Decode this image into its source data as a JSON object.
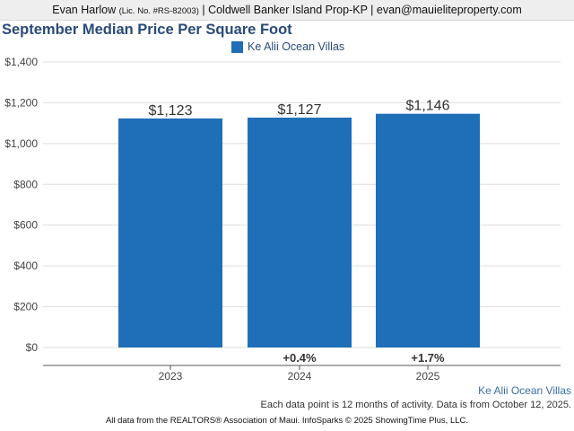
{
  "header": {
    "agent_name": "Evan Harlow",
    "license": "(Lic. No. #RS-82003)",
    "brokerage_and_email": "| Coldwell Banker Island Prop-KP | evan@mauieliteproperty.com"
  },
  "colors": {
    "bar": "#1f6fb8",
    "title": "#2a4a7a",
    "grid": "#dddddd",
    "axis": "#555555"
  },
  "chart_data": {
    "type": "bar",
    "title": "September Median Price Per Square Foot",
    "categories": [
      "2023",
      "2024",
      "2025"
    ],
    "series": [
      {
        "name": "Ke Alii Ocean Villas",
        "values": [
          1123,
          1127,
          1146
        ],
        "value_labels": [
          "$1,123",
          "$1,127",
          "$1,146"
        ],
        "change_labels": [
          "",
          "+0.4%",
          "+1.7%"
        ]
      }
    ],
    "ylim": [
      0,
      1400
    ],
    "yticks": [
      0,
      200,
      400,
      600,
      800,
      1000,
      1200,
      1400
    ],
    "ytick_labels": [
      "$0",
      "$200",
      "$400",
      "$600",
      "$800",
      "$1,000",
      "$1,200",
      "$1,400"
    ],
    "grid": true,
    "legend_position": "top-center"
  },
  "footer": {
    "source_label": "Ke Alii Ocean Villas",
    "note": "Each data point is 12 months of activity. Data is from October 12, 2025.",
    "copyright": "All data from the REALTORS® Association of Maui. InfoSparks © 2025 ShowingTime Plus, LLC."
  }
}
